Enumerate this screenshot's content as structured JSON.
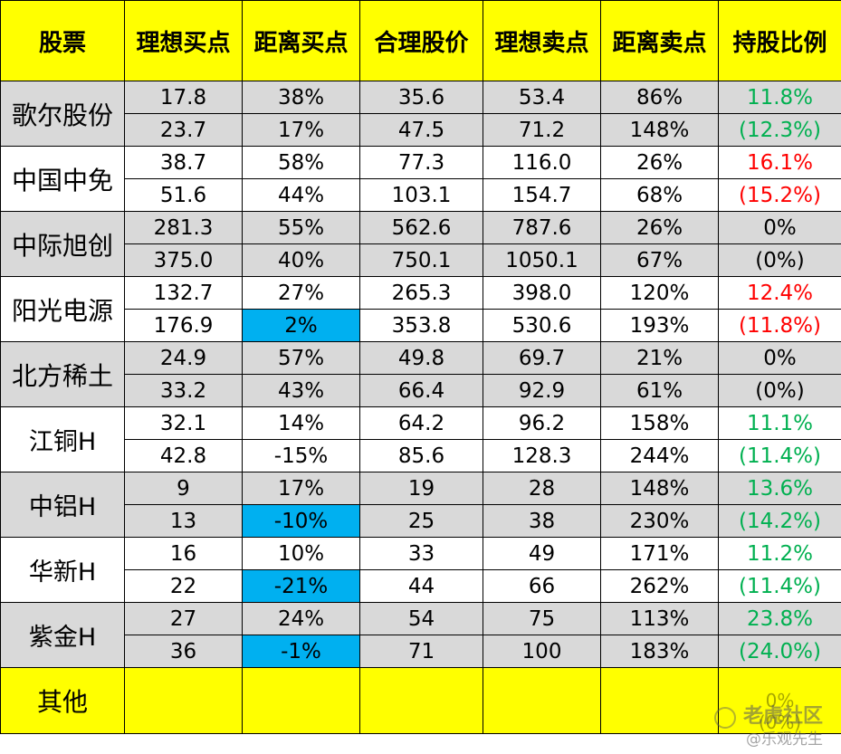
{
  "headers": [
    "股票",
    "理想买点",
    "距离买点",
    "合理股价",
    "理想卖点",
    "距离卖点",
    "持股比例"
  ],
  "colors": {
    "header_bg": "#ffff00",
    "shaded_row": "#d9d9d9",
    "highlight": "#00b0f0",
    "green": "#00b050",
    "red": "#ff0000"
  },
  "stocks": [
    {
      "name": "歌尔股份",
      "shade": true,
      "pos_color": "green",
      "rows": [
        [
          "17.8",
          "38%",
          "35.6",
          "53.4",
          "86%"
        ],
        [
          "23.7",
          "17%",
          "47.5",
          "71.2",
          "148%"
        ]
      ],
      "position": [
        "11.8%",
        "(12.3%)"
      ]
    },
    {
      "name": "中国中免",
      "shade": false,
      "pos_color": "red",
      "rows": [
        [
          "38.7",
          "58%",
          "77.3",
          "116.0",
          "26%"
        ],
        [
          "51.6",
          "44%",
          "103.1",
          "154.7",
          "68%"
        ]
      ],
      "position": [
        "16.1%",
        "(15.2%)"
      ]
    },
    {
      "name": "中际旭创",
      "shade": true,
      "pos_color": "black",
      "rows": [
        [
          "281.3",
          "55%",
          "562.6",
          "787.6",
          "26%"
        ],
        [
          "375.0",
          "40%",
          "750.1",
          "1050.1",
          "67%"
        ]
      ],
      "position": [
        "0%",
        "(0%)"
      ]
    },
    {
      "name": "阳光电源",
      "shade": false,
      "pos_color": "red",
      "rows": [
        [
          "132.7",
          "27%",
          "265.3",
          "398.0",
          "120%"
        ],
        [
          "176.9",
          "2%",
          "353.8",
          "530.6",
          "193%"
        ]
      ],
      "position": [
        "12.4%",
        "(11.8%)"
      ],
      "highlight_second": true
    },
    {
      "name": "北方稀土",
      "shade": true,
      "pos_color": "black",
      "rows": [
        [
          "24.9",
          "57%",
          "49.8",
          "69.7",
          "21%"
        ],
        [
          "33.2",
          "43%",
          "66.4",
          "92.9",
          "61%"
        ]
      ],
      "position": [
        "0%",
        "(0%)"
      ]
    },
    {
      "name": "江铜H",
      "shade": false,
      "pos_color": "green",
      "rows": [
        [
          "32.1",
          "14%",
          "64.2",
          "96.2",
          "158%"
        ],
        [
          "42.8",
          "-15%",
          "85.6",
          "128.3",
          "244%"
        ]
      ],
      "position": [
        "11.1%",
        "(11.4%)"
      ]
    },
    {
      "name": "中铝H",
      "shade": true,
      "pos_color": "green",
      "rows": [
        [
          "9",
          "17%",
          "19",
          "28",
          "148%"
        ],
        [
          "13",
          "-10%",
          "25",
          "38",
          "230%"
        ]
      ],
      "position": [
        "13.6%",
        "(14.2%)"
      ],
      "highlight_second": true
    },
    {
      "name": "华新H",
      "shade": false,
      "pos_color": "green",
      "rows": [
        [
          "16",
          "10%",
          "33",
          "49",
          "171%"
        ],
        [
          "22",
          "-21%",
          "44",
          "66",
          "262%"
        ]
      ],
      "position": [
        "11.2%",
        "(11.4%)"
      ],
      "highlight_second": true
    },
    {
      "name": "紫金H",
      "shade": true,
      "pos_color": "green",
      "rows": [
        [
          "27",
          "24%",
          "54",
          "75",
          "113%"
        ],
        [
          "36",
          "-1%",
          "71",
          "100",
          "183%"
        ]
      ],
      "position": [
        "23.8%",
        "(24.0%)"
      ],
      "highlight_second": true
    }
  ],
  "footer": {
    "name": "其他",
    "position": [
      "0%",
      "(0%)"
    ]
  },
  "watermark": {
    "line1": "老虎社区",
    "line2": "@乐观先生"
  }
}
